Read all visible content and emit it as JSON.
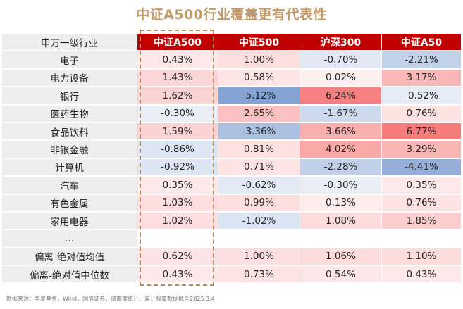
{
  "title": "中证A500行业覆盖更有代表性",
  "chart_data": {
    "type": "table",
    "title": "中证A500行业覆盖更有代表性",
    "row_header": "申万一级行业",
    "columns": [
      "中证A500",
      "中证500",
      "沪深300",
      "中证A50"
    ],
    "rows": [
      {
        "label": "电子",
        "values": [
          "0.43%",
          "1.00%",
          "-0.70%",
          "-2.21%"
        ]
      },
      {
        "label": "电力设备",
        "values": [
          "1.43%",
          "0.58%",
          "0.02%",
          "3.17%"
        ]
      },
      {
        "label": "银行",
        "values": [
          "1.62%",
          "-5.12%",
          "6.24%",
          "-0.52%"
        ]
      },
      {
        "label": "医药生物",
        "values": [
          "-0.30%",
          "2.65%",
          "-1.67%",
          "0.76%"
        ]
      },
      {
        "label": "食品饮料",
        "values": [
          "1.59%",
          "-3.36%",
          "3.66%",
          "6.77%"
        ]
      },
      {
        "label": "非银金融",
        "values": [
          "-0.86%",
          "0.81%",
          "4.02%",
          "3.29%"
        ]
      },
      {
        "label": "计算机",
        "values": [
          "-0.92%",
          "0.71%",
          "-2.28%",
          "-4.41%"
        ]
      },
      {
        "label": "汽车",
        "values": [
          "0.35%",
          "-0.62%",
          "-0.30%",
          "0.35%"
        ]
      },
      {
        "label": "有色金属",
        "values": [
          "1.03%",
          "0.99%",
          "0.13%",
          "0.76%"
        ]
      },
      {
        "label": "家用电器",
        "values": [
          "1.02%",
          "-1.02%",
          "1.08%",
          "1.85%"
        ]
      },
      {
        "label": "…",
        "values": [
          "",
          "",
          "",
          ""
        ]
      },
      {
        "label": "偏离-绝对值均值",
        "values": [
          "0.62%",
          "1.00%",
          "1.06%",
          "1.10%"
        ]
      },
      {
        "label": "偏离-绝对值中位数",
        "values": [
          "0.43%",
          "0.73%",
          "0.54%",
          "0.43%"
        ]
      }
    ],
    "highlighted_column": "中证A500"
  },
  "colors": {
    "header_red": "#c00000",
    "title_gold": "#c29a6a",
    "positive_strong": "#f77c7c",
    "negative_strong": "#6a8fc8",
    "label_gray": "#eeeeee",
    "box_border": "#b58a5c"
  },
  "footnote": "数据来源：华夏基金，Wind，国信证券，偏离度统计、累计权重数据截至2025.3.4"
}
